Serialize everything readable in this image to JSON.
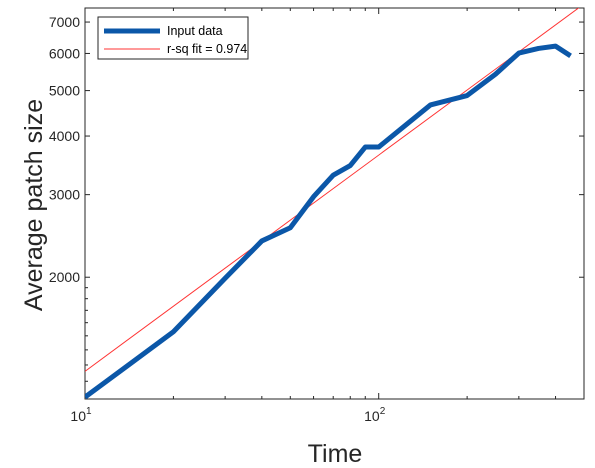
{
  "chart_data": {
    "type": "line",
    "xscale": "log",
    "yscale": "log",
    "xlabel": "Time",
    "ylabel": "Average patch size",
    "xlim": [
      10,
      500
    ],
    "ylim": [
      1100,
      7500
    ],
    "xticks": [
      {
        "value": 10,
        "base": "10",
        "exp": "1"
      },
      {
        "value": 100,
        "base": "10",
        "exp": "2"
      }
    ],
    "yticks": [
      {
        "value": 2000,
        "label": "2000"
      },
      {
        "value": 3000,
        "label": "3000"
      },
      {
        "value": 4000,
        "label": "4000"
      },
      {
        "value": 5000,
        "label": "5000"
      },
      {
        "value": 6000,
        "label": "6000"
      },
      {
        "value": 7000,
        "label": "7000"
      }
    ],
    "grid": false,
    "legend_position": "top-left",
    "series": [
      {
        "name": "Input data",
        "color": "#0b57a8",
        "x": [
          10,
          20,
          30,
          40,
          50,
          60,
          70,
          80,
          90,
          100,
          150,
          200,
          250,
          300,
          350,
          400,
          450
        ],
        "y": [
          1110,
          1530,
          1990,
          2390,
          2550,
          2970,
          3300,
          3460,
          3790,
          3790,
          4660,
          4880,
          5420,
          6010,
          6150,
          6220,
          5930
        ]
      },
      {
        "name": "r-sq fit = 0.974",
        "color": "#ff3333",
        "x": [
          10,
          500
        ],
        "y": [
          1260,
          7650
        ]
      }
    ]
  }
}
